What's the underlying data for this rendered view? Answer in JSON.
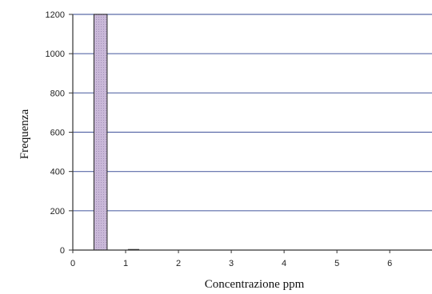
{
  "chart_data": {
    "type": "bar",
    "xlabel": "Concentrazione ppm",
    "ylabel": "Frequenza",
    "xlim": [
      0,
      6.8
    ],
    "ylim": [
      0,
      1200
    ],
    "grid": true,
    "x_ticks": [
      0,
      1,
      2,
      3,
      4,
      5,
      6
    ],
    "y_ticks": [
      0,
      200,
      400,
      600,
      800,
      1000,
      1200
    ],
    "bins": [
      {
        "x_start": 0.4,
        "x_end": 0.65,
        "value": 1200
      },
      {
        "x_start": 1.05,
        "x_end": 1.25,
        "value": 3
      }
    ],
    "colors": {
      "bar_fill": "#c9b8d8",
      "bar_stroke": "#222222",
      "grid": "#5a6aa8",
      "axis": "#333333"
    }
  }
}
